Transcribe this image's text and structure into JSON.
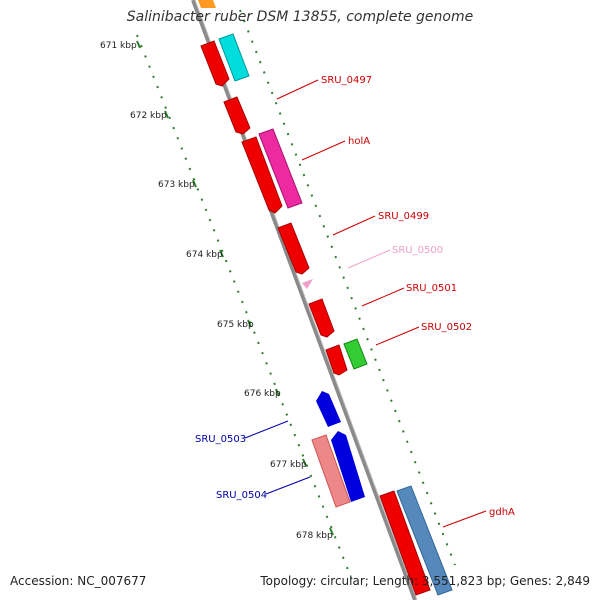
{
  "title": "Salinibacter ruber DSM 13855, complete genome",
  "footer": {
    "accession": "Accession: NC_007677",
    "summary": "Topology: circular; Length: 3,551,823 bp; Genes: 2,849"
  },
  "ticks": [
    "671 kbp",
    "672 kbp",
    "673 kbp",
    "674 kbp",
    "675 kbp",
    "676 kbp",
    "677 kbp",
    "678 kbp"
  ],
  "genes": [
    {
      "name": "SRU_0497",
      "color": "#cc0000"
    },
    {
      "name": "holA",
      "color": "#cc0000"
    },
    {
      "name": "SRU_0499",
      "color": "#cc0000"
    },
    {
      "name": "SRU_0500",
      "color": "#f0a0c8"
    },
    {
      "name": "SRU_0501",
      "color": "#cc0000"
    },
    {
      "name": "SRU_0502",
      "color": "#cc0000"
    },
    {
      "name": "SRU_0503",
      "color": "#0000aa"
    },
    {
      "name": "SRU_0504",
      "color": "#0000aa"
    },
    {
      "name": "gdhA",
      "color": "#cc0000"
    }
  ],
  "colors": {
    "backbone": "#888888",
    "tick_green": "#2e7d2e",
    "red": "#ee0000",
    "cyan": "#00dddd",
    "magenta": "#ee2aa0",
    "pink": "#f0a0c8",
    "green": "#33cc33",
    "blue": "#0000dd",
    "salmon": "#ee8888",
    "steelblue": "#5588bb",
    "orange": "#ff9922"
  }
}
